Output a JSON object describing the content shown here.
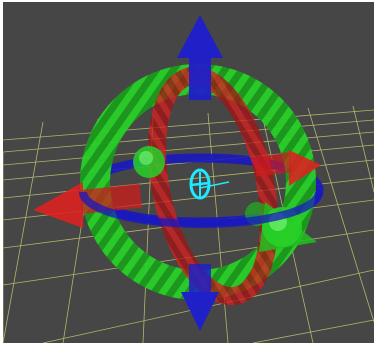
{
  "viewport": {
    "background": "#464646",
    "frame_color": "#ffffff"
  },
  "grid": {
    "color": "#c8c873",
    "visible": true
  },
  "gizmo": {
    "kind": "transform-gizmo",
    "axes": {
      "x": {
        "color": "#e02020",
        "icon": "translate-x-arrow-icon"
      },
      "y": {
        "color": "#20c020",
        "icon": "translate-y-arrow-icon"
      },
      "z": {
        "color": "#2020c8",
        "icon": "translate-z-arrow-icon"
      }
    },
    "rings": {
      "x": {
        "color": "#d01818",
        "icon": "rotate-x-ring-icon"
      },
      "y": {
        "color": "#18b818",
        "icon": "rotate-y-ring-icon"
      },
      "z": {
        "color": "#1818c0",
        "icon": "rotate-z-ring-icon"
      }
    },
    "center": {
      "color": "#20e8ff",
      "icon": "pivot-center-icon"
    }
  }
}
